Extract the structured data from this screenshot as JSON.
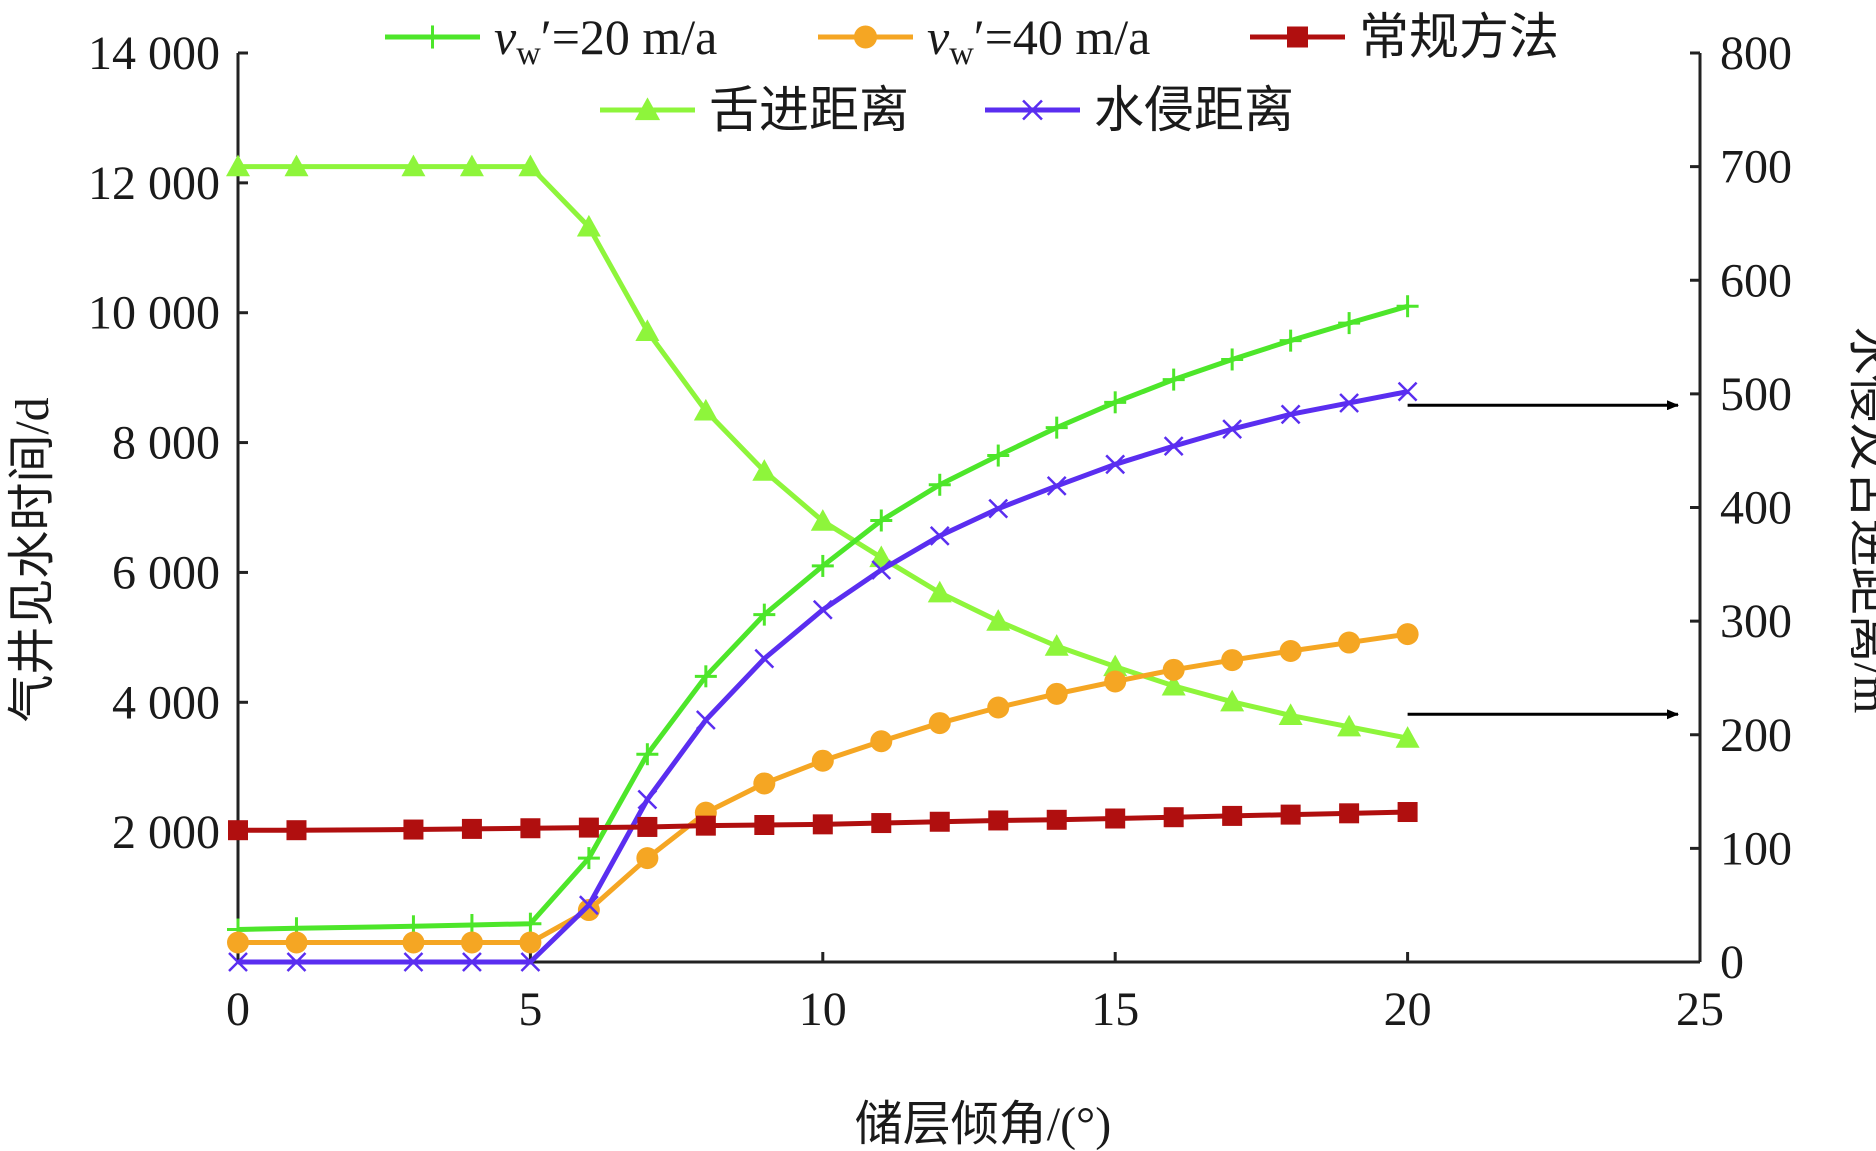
{
  "chart_data": {
    "type": "line",
    "title": "",
    "xlabel": "储层倾角/(°)",
    "ylabel_left": "气井见水时间/d",
    "ylabel_right": "水侵及舌进距离/m",
    "xlim": [
      0,
      25
    ],
    "ylim_left": [
      0,
      14000
    ],
    "ylim_right": [
      0,
      800
    ],
    "x_ticks": [
      "0",
      "5",
      "10",
      "15",
      "20",
      "25"
    ],
    "y_left_ticks": [
      "2 000",
      "4 000",
      "6 000",
      "8 000",
      "10 000",
      "12 000",
      "14 000"
    ],
    "y_right_ticks": [
      "0",
      "100",
      "200",
      "300",
      "400",
      "500",
      "600",
      "700",
      "800"
    ],
    "x": [
      0,
      1,
      3,
      4,
      5,
      6,
      7,
      8,
      9,
      10,
      11,
      12,
      13,
      14,
      15,
      16,
      17,
      18,
      19,
      20
    ],
    "series": [
      {
        "legend_prefix": "v",
        "legend_sub": "w",
        "legend_suffix": "′=20 m/a",
        "axis": "left",
        "marker": "plus",
        "color": "#4de62a",
        "values": [
          500,
          520,
          550,
          570,
          590,
          1600,
          3200,
          4400,
          5350,
          6100,
          6800,
          7350,
          7800,
          8230,
          8620,
          8970,
          9280,
          9570,
          9840,
          10100
        ]
      },
      {
        "legend_prefix": "v",
        "legend_sub": "w",
        "legend_suffix": "′=40 m/a",
        "axis": "left",
        "marker": "circle",
        "color": "#f5a623",
        "values": [
          300,
          300,
          300,
          300,
          300,
          800,
          1600,
          2300,
          2750,
          3100,
          3400,
          3680,
          3920,
          4130,
          4320,
          4500,
          4650,
          4790,
          4920,
          5050
        ]
      },
      {
        "name": "常规方法",
        "axis": "left",
        "marker": "square",
        "color": "#b00f0f",
        "values": [
          2030,
          2030,
          2040,
          2050,
          2060,
          2070,
          2080,
          2100,
          2110,
          2120,
          2140,
          2160,
          2180,
          2190,
          2210,
          2230,
          2250,
          2270,
          2290,
          2310
        ]
      },
      {
        "name": "舌进距离",
        "axis": "right",
        "marker": "triangle",
        "color": "#8ef53b",
        "values": [
          700,
          700,
          700,
          700,
          700,
          647,
          555,
          485,
          432,
          388,
          356,
          325,
          300,
          278,
          260,
          243,
          229,
          217,
          207,
          197
        ]
      },
      {
        "name": "水侵距离",
        "axis": "right",
        "marker": "x",
        "color": "#5a2ef0",
        "values": [
          0,
          0,
          0,
          0,
          0,
          50,
          143,
          213,
          267,
          310,
          345,
          375,
          399,
          419,
          438,
          454,
          469,
          482,
          492,
          502
        ]
      }
    ],
    "annotations": [
      {
        "type": "arrow",
        "from_x": 20,
        "y_right": 490,
        "direction": "right"
      },
      {
        "type": "arrow",
        "from_x": 20,
        "y_right": 218,
        "direction": "right"
      }
    ],
    "grid": false,
    "legend_position": "top"
  }
}
